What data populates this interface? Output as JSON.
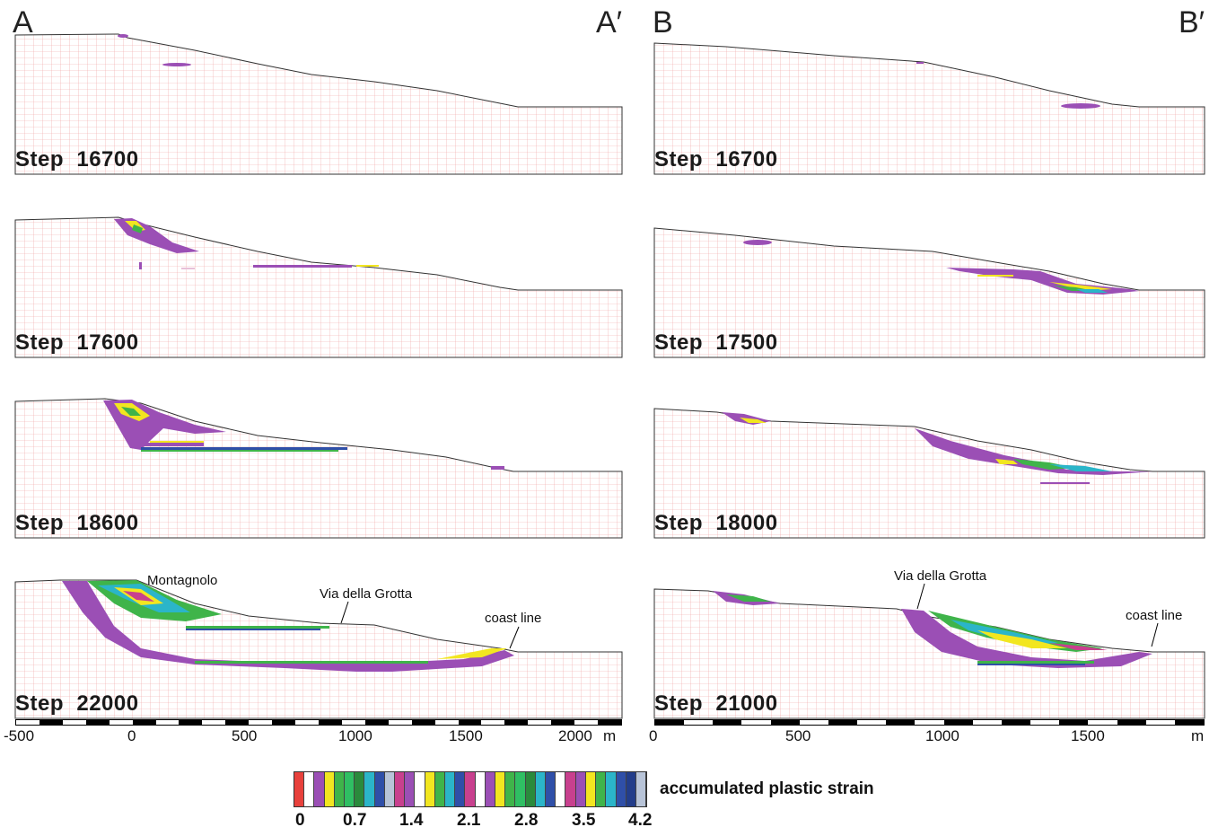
{
  "sections": {
    "left": {
      "start_label": "A",
      "end_label": "A′"
    },
    "right": {
      "start_label": "B",
      "end_label": "B′"
    }
  },
  "panels": {
    "a1": {
      "step": "Step  16700"
    },
    "a2": {
      "step": "Step  17600"
    },
    "a3": {
      "step": "Step  18600"
    },
    "a4": {
      "step": "Step  22000"
    },
    "b1": {
      "step": "Step  16700"
    },
    "b2": {
      "step": "Step  17500"
    },
    "b3": {
      "step": "Step  18000"
    },
    "b4": {
      "step": "Step  21000"
    }
  },
  "annotations": {
    "montagnolo": "Montagnolo",
    "via_left": "Via della Grotta",
    "coast_left": "coast line",
    "via_right": "Via della Grotta",
    "coast_right": "coast line"
  },
  "axis_left": {
    "ticks": [
      "-500",
      "0",
      "500",
      "1000",
      "1500",
      "2000"
    ],
    "unit": "m"
  },
  "axis_right": {
    "ticks": [
      "0",
      "500",
      "1000",
      "1500"
    ],
    "unit": "m"
  },
  "legend": {
    "title": "accumulated plastic strain",
    "ticks": [
      "0",
      "0.7",
      "1.4",
      "2.1",
      "2.8",
      "3.5",
      "4.2"
    ],
    "colors": [
      "#e8413c",
      "#ffffff",
      "#9b4fb5",
      "#f2e620",
      "#3fb44a",
      "#2fbf63",
      "#2a8a3c",
      "#2bb5c9",
      "#2f4fa8",
      "#b8c4d8",
      "#c8408e",
      "#9b4fb5",
      "#ffffff",
      "#f2e620",
      "#3fb44a",
      "#2bb5c9",
      "#2f4fa8",
      "#c8408e",
      "#ffffff",
      "#9b4fb5",
      "#f2e620",
      "#3fb44a",
      "#2fbf63",
      "#2a8a3c",
      "#2bb5c9",
      "#2f4fa8",
      "#ffffff",
      "#c8408e",
      "#9b4fb5",
      "#f2e620",
      "#3fb44a",
      "#2bb5c9",
      "#2f4fa8",
      "#233d8a",
      "#b8c4d8"
    ]
  },
  "colors": {
    "grid": "#f0a0a0",
    "outline": "#333333",
    "strain_purple": "#9b4fb5",
    "strain_yellow": "#f2e620",
    "strain_green": "#3fb44a",
    "strain_cyan": "#2bb5c9",
    "strain_blue": "#2f4fa8"
  }
}
